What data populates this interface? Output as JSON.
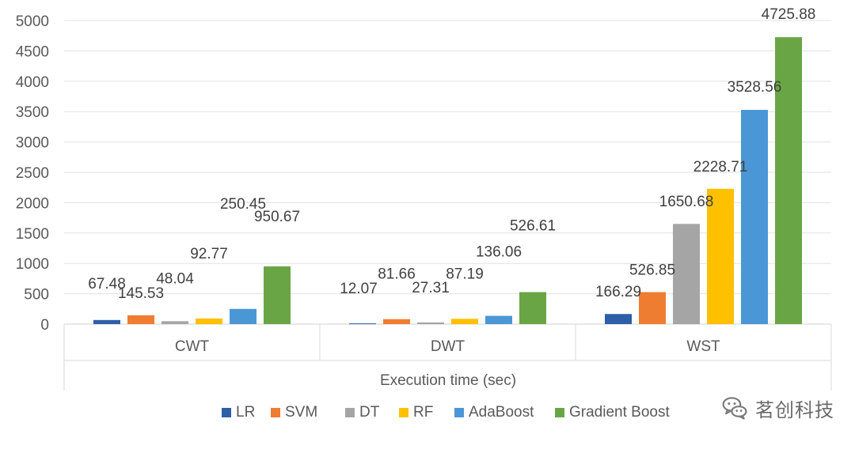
{
  "chart_data": {
    "type": "bar",
    "title": "",
    "xlabel": "Execution time (sec)",
    "ylabel": "",
    "ylim": [
      0,
      5000
    ],
    "yticks": [
      0,
      500,
      1000,
      1500,
      2000,
      2500,
      3000,
      3500,
      4000,
      4500,
      5000
    ],
    "grid": true,
    "legend_position": "bottom",
    "categories": [
      "CWT",
      "DWT",
      "WST"
    ],
    "series": [
      {
        "name": "LR",
        "color": "#2f5ea8",
        "values": [
          67.48,
          12.07,
          166.29
        ]
      },
      {
        "name": "SVM",
        "color": "#ee7d31",
        "values": [
          145.53,
          81.66,
          526.85
        ]
      },
      {
        "name": "DT",
        "color": "#a5a5a5",
        "values": [
          48.04,
          27.31,
          1650.68
        ]
      },
      {
        "name": "RF",
        "color": "#ffc000",
        "values": [
          92.77,
          87.19,
          2228.71
        ]
      },
      {
        "name": "AdaBoost",
        "color": "#4b97d5",
        "values": [
          250.45,
          136.06,
          3528.56
        ]
      },
      {
        "name": "Gradient Boost",
        "color": "#6aa545",
        "values": [
          950.67,
          526.61,
          4725.88
        ]
      }
    ]
  },
  "watermark": {
    "text": "茗创科技",
    "icon": "wechat-icon"
  }
}
